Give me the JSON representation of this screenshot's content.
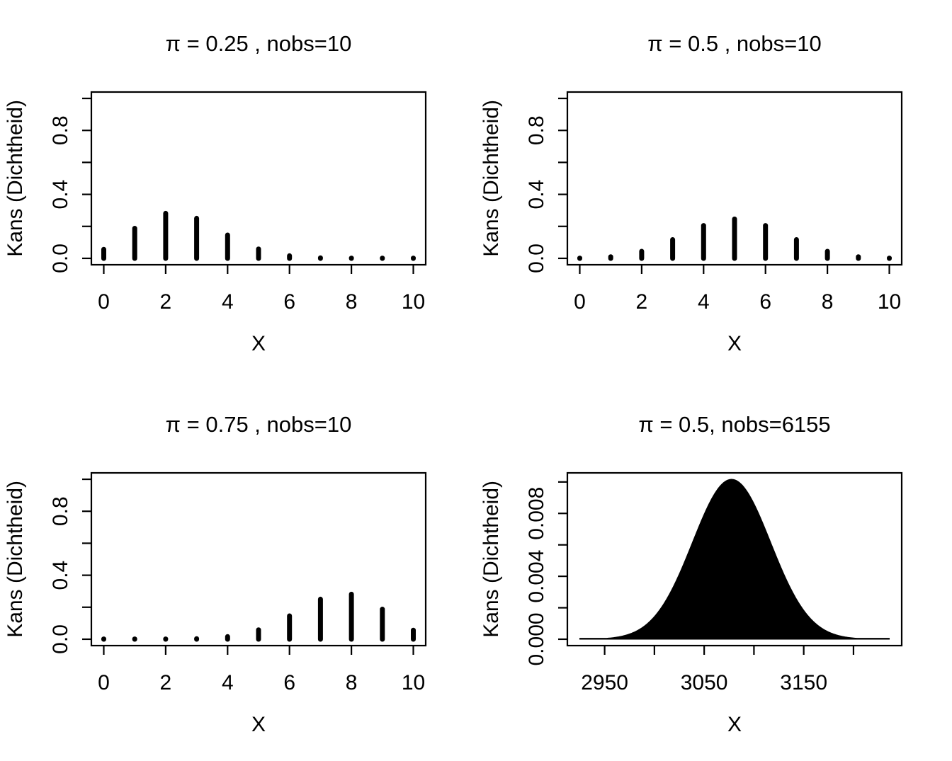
{
  "figure": {
    "background": "#ffffff",
    "foreground": "#000000",
    "description": "2x2 grid of R-style binomial distribution plots"
  },
  "chart_data": [
    {
      "type": "bar",
      "style": "stem",
      "title": "π = 0.25 , nobs=10",
      "xlabel": "X",
      "ylabel": "Kans (Dichtheid)",
      "categories": [
        0,
        1,
        2,
        3,
        4,
        5,
        6,
        7,
        8,
        9,
        10
      ],
      "values": [
        0.056314,
        0.187712,
        0.281568,
        0.250282,
        0.145998,
        0.058399,
        0.016222,
        0.00309,
        0.000386,
        2.9e-05,
        1e-06
      ],
      "xlim": [
        0,
        10
      ],
      "ylim": [
        0,
        1
      ],
      "xticks": [
        0,
        2,
        4,
        6,
        8,
        10
      ],
      "xtick_labels": [
        "0",
        "2",
        "4",
        "6",
        "8",
        "10"
      ],
      "yticks": [
        0,
        0.2,
        0.4,
        0.6,
        0.8,
        1
      ],
      "ytick_labels": [
        "0.0",
        "",
        "0.4",
        "",
        "0.8",
        ""
      ],
      "grid": false,
      "legend": "none"
    },
    {
      "type": "bar",
      "style": "stem",
      "title": "π = 0.5 , nobs=10",
      "xlabel": "X",
      "ylabel": "Kans (Dichtheid)",
      "categories": [
        0,
        1,
        2,
        3,
        4,
        5,
        6,
        7,
        8,
        9,
        10
      ],
      "values": [
        0.000977,
        0.009766,
        0.043945,
        0.117188,
        0.205078,
        0.246094,
        0.205078,
        0.117188,
        0.043945,
        0.009766,
        0.000977
      ],
      "xlim": [
        0,
        10
      ],
      "ylim": [
        0,
        1
      ],
      "xticks": [
        0,
        2,
        4,
        6,
        8,
        10
      ],
      "xtick_labels": [
        "0",
        "2",
        "4",
        "6",
        "8",
        "10"
      ],
      "yticks": [
        0,
        0.2,
        0.4,
        0.6,
        0.8,
        1
      ],
      "ytick_labels": [
        "0.0",
        "",
        "0.4",
        "",
        "0.8",
        ""
      ],
      "grid": false,
      "legend": "none"
    },
    {
      "type": "bar",
      "style": "stem",
      "title": "π = 0.75 , nobs=10",
      "xlabel": "X",
      "ylabel": "Kans (Dichtheid)",
      "categories": [
        0,
        1,
        2,
        3,
        4,
        5,
        6,
        7,
        8,
        9,
        10
      ],
      "values": [
        1e-06,
        2.9e-05,
        0.000386,
        0.00309,
        0.016222,
        0.058399,
        0.145998,
        0.250282,
        0.281568,
        0.187712,
        0.056314
      ],
      "xlim": [
        0,
        10
      ],
      "ylim": [
        0,
        1
      ],
      "xticks": [
        0,
        2,
        4,
        6,
        8,
        10
      ],
      "xtick_labels": [
        "0",
        "2",
        "4",
        "6",
        "8",
        "10"
      ],
      "yticks": [
        0,
        0.2,
        0.4,
        0.6,
        0.8,
        1
      ],
      "ytick_labels": [
        "0.0",
        "",
        "0.4",
        "",
        "0.8",
        ""
      ],
      "grid": false,
      "legend": "none"
    },
    {
      "type": "area",
      "style": "density",
      "title": "π = 0.5, nobs=6155",
      "xlabel": "X",
      "ylabel": "Kans (Dichtheid)",
      "distribution": {
        "family": "binomial (normal shape)",
        "mean": 3077.5,
        "sd": 39.2269,
        "peak_density": 0.01017
      },
      "x_range": [
        2925,
        3236
      ],
      "xlim": [
        2925,
        3236
      ],
      "ylim": [
        0,
        0.01017
      ],
      "xticks": [
        2950,
        3000,
        3050,
        3100,
        3150,
        3200
      ],
      "xtick_labels": [
        "2950",
        "",
        "3050",
        "",
        "3150",
        ""
      ],
      "yticks": [
        0,
        0.002,
        0.004,
        0.006,
        0.008,
        0.01
      ],
      "ytick_labels": [
        "0.000",
        "",
        "0.004",
        "",
        "0.008",
        ""
      ],
      "sampled_density": [
        [
          2930,
          8.6e-06
        ],
        [
          2950,
          5.17e-05
        ],
        [
          2970,
          0.000238
        ],
        [
          2990,
          0.000845
        ],
        [
          3010,
          0.002315
        ],
        [
          3030,
          0.004886
        ],
        [
          3050,
          0.007954
        ],
        [
          3070,
          0.009986
        ],
        [
          3077.5,
          0.01017
        ],
        [
          3090,
          0.009667
        ],
        [
          3110,
          0.007216
        ],
        [
          3130,
          0.004152
        ],
        [
          3150,
          0.001843
        ],
        [
          3170,
          0.00063
        ],
        [
          3190,
          0.000166
        ],
        [
          3210,
          3.39e-05
        ],
        [
          3230,
          5.3e-06
        ]
      ],
      "grid": false,
      "legend": "none"
    }
  ]
}
